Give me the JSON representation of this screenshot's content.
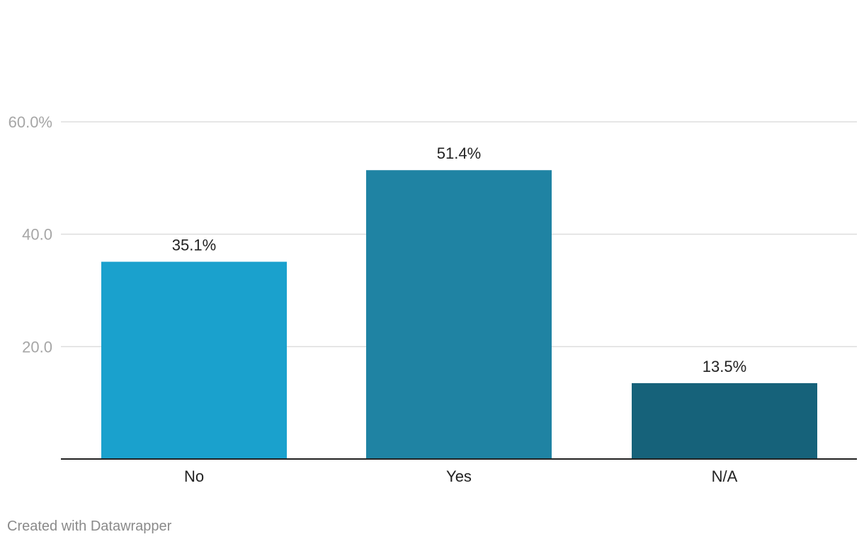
{
  "chart_data": {
    "type": "bar",
    "categories": [
      "No",
      "Yes",
      "N/A"
    ],
    "values": [
      35.1,
      51.4,
      13.5
    ],
    "value_labels": [
      "35.1%",
      "51.4%",
      "13.5%"
    ],
    "yticks": [
      20,
      40,
      60
    ],
    "ytick_labels": [
      "20.0",
      "40.0",
      "60.0%"
    ],
    "ylim": [
      0,
      60
    ],
    "grid": true,
    "colors": [
      "#1aa1cd",
      "#1f83a3",
      "#16627a"
    ]
  },
  "footer": {
    "credit": "Created with Datawrapper"
  },
  "colors": {
    "grid": "#dddddd",
    "baseline": "#222222",
    "tick_text": "#a6a6a6"
  }
}
